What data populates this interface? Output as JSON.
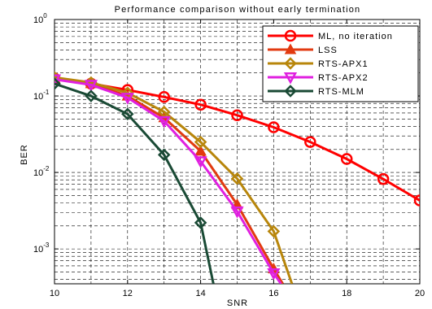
{
  "chart_data": {
    "type": "line",
    "title": "Performance comparison without early termination",
    "xlabel": "SNR",
    "ylabel": "BER",
    "xlim": [
      10,
      20
    ],
    "ylim": [
      0.00035,
      1
    ],
    "yscale": "log",
    "grid": "dashed",
    "legend_position": "top-right",
    "xticks": [
      10,
      12,
      14,
      16,
      18,
      20
    ],
    "xtick_labels": [
      "10",
      "12",
      "14",
      "16",
      "18",
      "20"
    ],
    "yticks": [
      0.001,
      0.01,
      0.1,
      1
    ],
    "ytick_labels": [
      {
        "base": "10",
        "exp": "-3"
      },
      {
        "base": "10",
        "exp": "-2"
      },
      {
        "base": "10",
        "exp": "-1"
      },
      {
        "base": "10",
        "exp": "0"
      }
    ],
    "series": [
      {
        "name": "ML, no iteration",
        "color": "#ff0000",
        "marker": "circle",
        "x": [
          10,
          11,
          12,
          13,
          14,
          15,
          16,
          17,
          18,
          19,
          20
        ],
        "y": [
          0.17,
          0.145,
          0.12,
          0.097,
          0.077,
          0.056,
          0.039,
          0.025,
          0.015,
          0.0082,
          0.0043
        ]
      },
      {
        "name": "LSS",
        "color": "#e23a10",
        "marker": "triangle-up",
        "x": [
          10,
          11,
          12,
          13,
          14,
          15,
          16,
          16.25
        ],
        "y": [
          0.17,
          0.145,
          0.1,
          0.052,
          0.019,
          0.0038,
          0.00055,
          0.00035
        ]
      },
      {
        "name": "RTS-APX1",
        "color": "#b8860b",
        "marker": "diamond",
        "x": [
          10,
          11,
          12,
          13,
          14,
          15,
          16,
          16.5
        ],
        "y": [
          0.175,
          0.15,
          0.11,
          0.062,
          0.025,
          0.0083,
          0.0017,
          0.00035
        ]
      },
      {
        "name": "RTS-APX2",
        "color": "#e020e0",
        "marker": "triangle-down",
        "x": [
          10,
          11,
          12,
          13,
          14,
          15,
          16,
          16.2
        ],
        "y": [
          0.165,
          0.14,
          0.095,
          0.047,
          0.014,
          0.0031,
          0.00048,
          0.00035
        ]
      },
      {
        "name": "RTS-MLM",
        "color": "#1a4a35",
        "marker": "diamond",
        "x": [
          10,
          11,
          12,
          13,
          14,
          14.35
        ],
        "y": [
          0.145,
          0.1,
          0.058,
          0.017,
          0.0022,
          0.00035
        ]
      }
    ]
  }
}
